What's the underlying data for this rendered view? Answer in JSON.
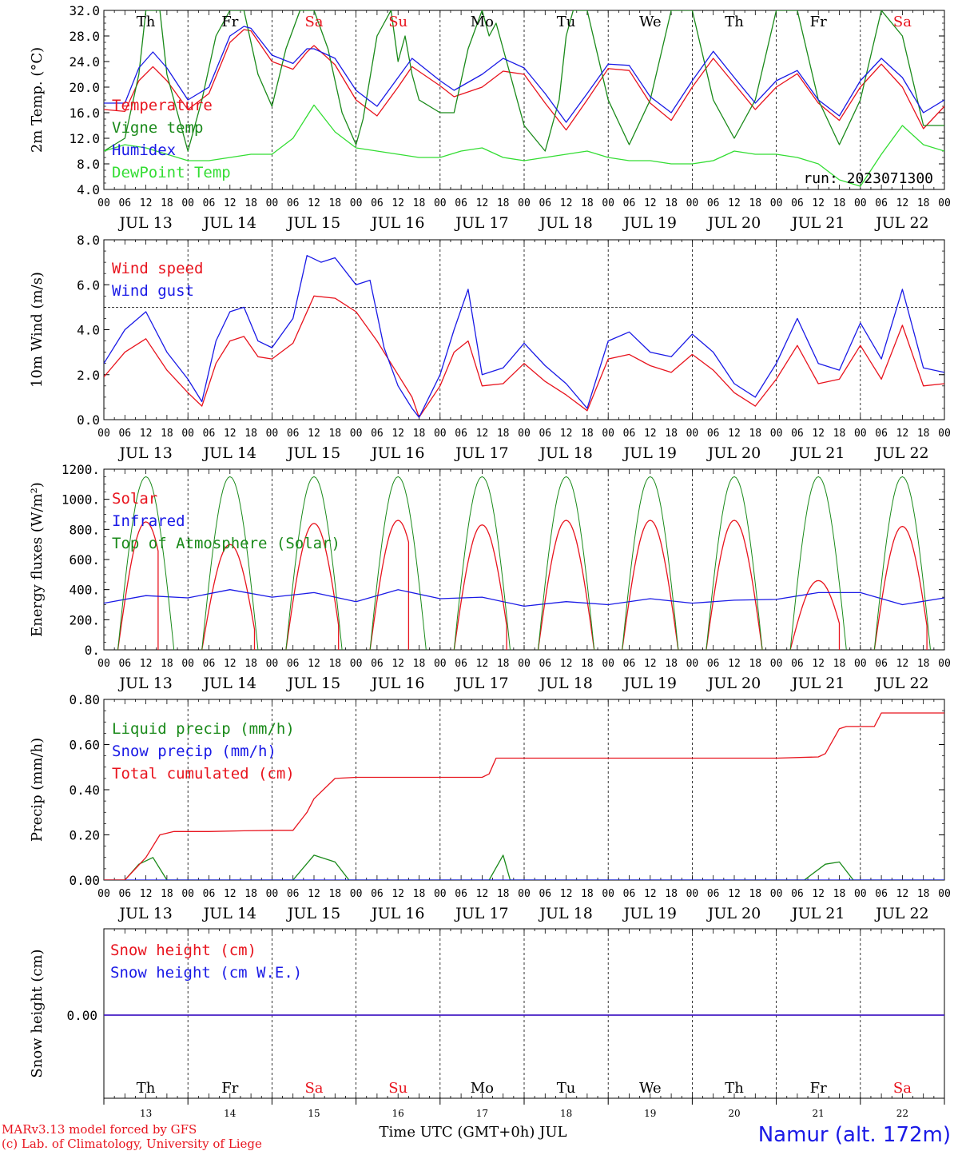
{
  "colors": {
    "red": "#e8141e",
    "green": "#1a8a1a",
    "lightgreen": "#33dd33",
    "blue": "#1a1ae6",
    "purple": "#8a1aa0",
    "axis": "#000000"
  },
  "day_dates": [
    "JUL 13",
    "JUL 14",
    "JUL 15",
    "JUL 16",
    "JUL 17",
    "JUL 18",
    "JUL 19",
    "JUL 20",
    "JUL 21",
    "JUL 22"
  ],
  "day_names": [
    {
      "name": "Th",
      "color": "black"
    },
    {
      "name": "Fr",
      "color": "black"
    },
    {
      "name": "Sa",
      "color": "red"
    },
    {
      "name": "Su",
      "color": "red"
    },
    {
      "name": "Mo",
      "color": "black"
    },
    {
      "name": "Tu",
      "color": "black"
    },
    {
      "name": "We",
      "color": "black"
    },
    {
      "name": "Th",
      "color": "black"
    },
    {
      "name": "Fr",
      "color": "black"
    },
    {
      "name": "Sa",
      "color": "red"
    }
  ],
  "hour_ticks": [
    "00",
    "06",
    "12",
    "18"
  ],
  "day_numbers": [
    "13",
    "14",
    "15",
    "16",
    "17",
    "18",
    "19",
    "20",
    "21",
    "22"
  ],
  "footer": {
    "credit1": "MARv3.13 model forced by GFS",
    "credit2": "(c) Lab. of Climatology, University of Liege",
    "xaxis_title": "Time UTC (GMT+0h) JUL",
    "station": "Namur (alt. 172m)"
  },
  "chart_data": [
    {
      "type": "line",
      "ylabel": "2m Temp. (°C)",
      "ylim": [
        4,
        32
      ],
      "yticks": [
        "4.0",
        "8.0",
        "12.0",
        "16.0",
        "20.0",
        "24.0",
        "28.0",
        "32.0"
      ],
      "annotation": "run: 2023071300",
      "x_unit": "hours since JUL 13 00 UTC",
      "series": [
        {
          "name": "Temperature",
          "color": "red",
          "x": [
            0,
            6,
            10,
            14,
            18,
            24,
            30,
            36,
            40,
            42,
            48,
            54,
            58,
            60,
            66,
            72,
            78,
            84,
            88,
            96,
            100,
            108,
            114,
            120,
            126,
            132,
            138,
            144,
            150,
            156,
            162,
            168,
            174,
            180,
            186,
            192,
            198,
            204,
            210,
            216,
            222,
            228,
            234,
            240
          ],
          "y": [
            16.5,
            16.2,
            21,
            23.2,
            21,
            16.5,
            19,
            27,
            29,
            28.8,
            24,
            22.8,
            25.5,
            26.5,
            23.5,
            18,
            15.5,
            20,
            23.2,
            20.2,
            18.5,
            20,
            22.5,
            22,
            17.5,
            13.3,
            18,
            22.9,
            22.6,
            17.5,
            14.8,
            20,
            24.5,
            20.5,
            16.5,
            20,
            22.1,
            17.5,
            14.8,
            20,
            23.6,
            20,
            13.5,
            17
          ]
        },
        {
          "name": "Vigne temp",
          "color": "green",
          "x": [
            0,
            6,
            10,
            12,
            16,
            18,
            24,
            28,
            32,
            36,
            40,
            44,
            48,
            52,
            56,
            58,
            60,
            64,
            68,
            72,
            74,
            78,
            82,
            84,
            86,
            88,
            90,
            96,
            100,
            104,
            108,
            110,
            112,
            116,
            120,
            126,
            130,
            132,
            134,
            138,
            144,
            150,
            156,
            162,
            168,
            174,
            180,
            186,
            192,
            198,
            204,
            210,
            216,
            222,
            228,
            234,
            240
          ],
          "y": [
            10,
            12,
            22,
            32,
            32,
            22,
            10,
            18,
            28,
            32,
            32,
            22,
            17,
            26,
            32,
            32,
            32,
            26,
            16,
            11,
            15,
            28,
            32,
            24,
            28,
            22,
            18,
            16,
            16,
            26,
            32,
            28,
            30,
            22,
            14,
            10,
            18,
            28,
            32,
            32,
            18,
            11,
            18,
            32,
            32,
            18,
            12,
            18,
            32,
            32,
            18,
            11,
            18,
            32,
            28,
            14,
            14
          ]
        },
        {
          "name": "Humidex",
          "color": "blue",
          "x": [
            0,
            6,
            10,
            14,
            18,
            24,
            30,
            36,
            40,
            42,
            48,
            54,
            58,
            60,
            66,
            72,
            78,
            84,
            88,
            96,
            100,
            108,
            114,
            120,
            126,
            132,
            138,
            144,
            150,
            156,
            162,
            168,
            174,
            180,
            186,
            192,
            198,
            204,
            210,
            216,
            222,
            228,
            234,
            240
          ],
          "y": [
            17.5,
            17.5,
            23,
            25.5,
            23,
            18,
            20,
            28,
            29.5,
            29.2,
            25,
            23.7,
            26,
            26,
            24.5,
            19.5,
            17,
            21.5,
            24.5,
            21,
            19.5,
            22,
            24.5,
            23,
            19,
            14.5,
            19,
            23.6,
            23.4,
            18.5,
            16,
            21,
            25.6,
            21.5,
            17.5,
            21,
            22.6,
            18,
            15.5,
            21,
            24.5,
            21.5,
            16,
            18
          ]
        },
        {
          "name": "DewPoint Temp",
          "color": "lightgreen",
          "x": [
            0,
            6,
            12,
            18,
            24,
            30,
            36,
            42,
            48,
            54,
            60,
            66,
            72,
            78,
            84,
            90,
            96,
            102,
            108,
            114,
            120,
            126,
            132,
            138,
            144,
            150,
            156,
            162,
            168,
            174,
            180,
            186,
            192,
            198,
            204,
            210,
            216,
            222,
            228,
            234,
            240
          ],
          "y": [
            10,
            11,
            10.5,
            9.5,
            8.5,
            8.5,
            9,
            9.5,
            9.5,
            12,
            17.2,
            13,
            10.5,
            10,
            9.5,
            9,
            9,
            10,
            10.5,
            9,
            8.5,
            9,
            9.5,
            10,
            9,
            8.5,
            8.5,
            8,
            8,
            8.5,
            10,
            9.5,
            9.5,
            9,
            8,
            5.5,
            4.5,
            9.5,
            14,
            11,
            10
          ]
        }
      ]
    },
    {
      "type": "line",
      "ylabel": "10m Wind (m/s)",
      "ylim": [
        0,
        8
      ],
      "yticks": [
        "0.0",
        "2.0",
        "4.0",
        "6.0",
        "8.0"
      ],
      "reference_line": 5,
      "x_unit": "hours since JUL 13 00 UTC",
      "series": [
        {
          "name": "Wind speed",
          "color": "red",
          "x": [
            0,
            6,
            12,
            18,
            24,
            28,
            32,
            36,
            40,
            44,
            48,
            54,
            60,
            66,
            72,
            78,
            84,
            88,
            90,
            96,
            100,
            104,
            108,
            114,
            120,
            126,
            132,
            138,
            144,
            150,
            156,
            162,
            168,
            174,
            180,
            186,
            192,
            198,
            204,
            210,
            216,
            222,
            228,
            234,
            240
          ],
          "y": [
            1.9,
            3,
            3.6,
            2.2,
            1.2,
            0.6,
            2.5,
            3.5,
            3.7,
            2.8,
            2.7,
            3.4,
            5.5,
            5.4,
            4.8,
            3.5,
            2,
            1,
            0.1,
            1.5,
            3,
            3.5,
            1.5,
            1.6,
            2.5,
            1.7,
            1.1,
            0.4,
            2.7,
            2.9,
            2.4,
            2.1,
            2.9,
            2.2,
            1.2,
            0.6,
            1.8,
            3.3,
            1.6,
            1.8,
            3.3,
            1.8,
            4.2,
            1.5,
            1.6
          ]
        },
        {
          "name": "Wind gust",
          "color": "blue",
          "x": [
            0,
            6,
            12,
            18,
            24,
            28,
            32,
            36,
            40,
            44,
            48,
            54,
            58,
            62,
            66,
            72,
            76,
            80,
            84,
            88,
            90,
            96,
            100,
            104,
            108,
            114,
            120,
            126,
            132,
            138,
            144,
            150,
            156,
            162,
            168,
            174,
            180,
            186,
            192,
            198,
            204,
            210,
            216,
            222,
            228,
            234,
            240
          ],
          "y": [
            2.5,
            4,
            4.8,
            3,
            1.8,
            0.8,
            3.5,
            4.8,
            5,
            3.5,
            3.2,
            4.5,
            7.3,
            7,
            7.2,
            6,
            6.2,
            3.2,
            1.5,
            0.5,
            0.1,
            2,
            4,
            5.8,
            2,
            2.3,
            3.4,
            2.4,
            1.6,
            0.5,
            3.5,
            3.9,
            3,
            2.8,
            3.8,
            3,
            1.6,
            1,
            2.5,
            4.5,
            2.5,
            2.2,
            4.3,
            2.7,
            5.8,
            2.3,
            2.1
          ]
        }
      ]
    },
    {
      "type": "line",
      "ylabel": "Energy fluxes (W/m²)",
      "ylim": [
        0,
        1200
      ],
      "yticks": [
        "0.",
        "200.",
        "400.",
        "600.",
        "800.",
        "1000.",
        "1200."
      ],
      "x_unit": "hours since JUL 13 00 UTC",
      "series": [
        {
          "name": "Solar",
          "color": "red",
          "peaks": [
            {
              "day": 0,
              "peak": 850,
              "end": 15.5
            },
            {
              "day": 1,
              "peak": 700,
              "end": 19
            },
            {
              "day": 2,
              "peak": 840,
              "end": 19
            },
            {
              "day": 3,
              "peak": 860,
              "end": 15
            },
            {
              "day": 4,
              "peak": 830,
              "end": 19
            },
            {
              "day": 5,
              "peak": 860,
              "end": 20
            },
            {
              "day": 6,
              "peak": 860,
              "end": 20
            },
            {
              "day": 7,
              "peak": 860,
              "end": 20
            },
            {
              "day": 8,
              "peak": 460,
              "end": 18
            },
            {
              "day": 9,
              "peak": 820,
              "end": 19
            }
          ]
        },
        {
          "name": "Infrared",
          "color": "blue",
          "x": [
            0,
            12,
            24,
            36,
            48,
            60,
            72,
            84,
            96,
            108,
            120,
            132,
            144,
            156,
            168,
            180,
            192,
            204,
            216,
            228,
            240
          ],
          "y": [
            310,
            360,
            345,
            400,
            350,
            380,
            320,
            400,
            340,
            350,
            290,
            320,
            300,
            340,
            310,
            330,
            335,
            380,
            380,
            300,
            345
          ]
        },
        {
          "name": "Top of Atmosphere (Solar)",
          "color": "green",
          "peak": 1150,
          "sunrise": 4,
          "sunset": 20
        }
      ]
    },
    {
      "type": "line",
      "ylabel": "Precip (mm/h)",
      "ylim": [
        0,
        0.8
      ],
      "yticks": [
        "0.00",
        "0.20",
        "0.40",
        "0.60",
        "0.80"
      ],
      "x_unit": "hours since JUL 13 00 UTC",
      "series": [
        {
          "name": "Liquid precip (mm/h)",
          "color": "green",
          "x": [
            0,
            6,
            10,
            14,
            18,
            24,
            30,
            40,
            50,
            54,
            60,
            66,
            70,
            72,
            96,
            110,
            114,
            116,
            120,
            144,
            188,
            192,
            196,
            200,
            206,
            210,
            214,
            218,
            222,
            228,
            240
          ],
          "y": [
            0,
            0,
            0.07,
            0.1,
            0,
            0,
            0,
            0,
            0,
            0,
            0.11,
            0.08,
            0,
            0,
            0,
            0,
            0.11,
            0,
            0,
            0,
            0,
            0,
            0,
            0,
            0.07,
            0.08,
            0,
            0,
            0,
            0,
            0
          ]
        },
        {
          "name": "Snow precip (mm/h)",
          "color": "blue",
          "x": [
            0,
            240
          ],
          "y": [
            0,
            0
          ]
        },
        {
          "name": "Total cumulated (cm)",
          "color": "red",
          "x": [
            0,
            6,
            12,
            16,
            20,
            30,
            40,
            50,
            54,
            58,
            60,
            66,
            72,
            80,
            96,
            108,
            110,
            112,
            120,
            144,
            168,
            192,
            204,
            206,
            210,
            212,
            216,
            220,
            222,
            240
          ],
          "y": [
            0,
            0,
            0.1,
            0.2,
            0.215,
            0.215,
            0.218,
            0.22,
            0.22,
            0.3,
            0.36,
            0.45,
            0.455,
            0.455,
            0.455,
            0.455,
            0.47,
            0.54,
            0.54,
            0.54,
            0.54,
            0.54,
            0.545,
            0.56,
            0.67,
            0.68,
            0.68,
            0.68,
            0.74,
            0.74
          ]
        }
      ]
    },
    {
      "type": "line",
      "ylabel": "Snow height (cm)",
      "yticks": [
        "0.00"
      ],
      "x_unit": "hours since JUL 13 00 UTC",
      "series": [
        {
          "name": "Snow height (cm)",
          "color": "red",
          "x": [
            0,
            240
          ],
          "y": [
            0,
            0
          ]
        },
        {
          "name": "Snow height (cm W.E.)",
          "color": "blue",
          "x": [
            0,
            240
          ],
          "y": [
            0,
            0
          ]
        }
      ]
    }
  ]
}
